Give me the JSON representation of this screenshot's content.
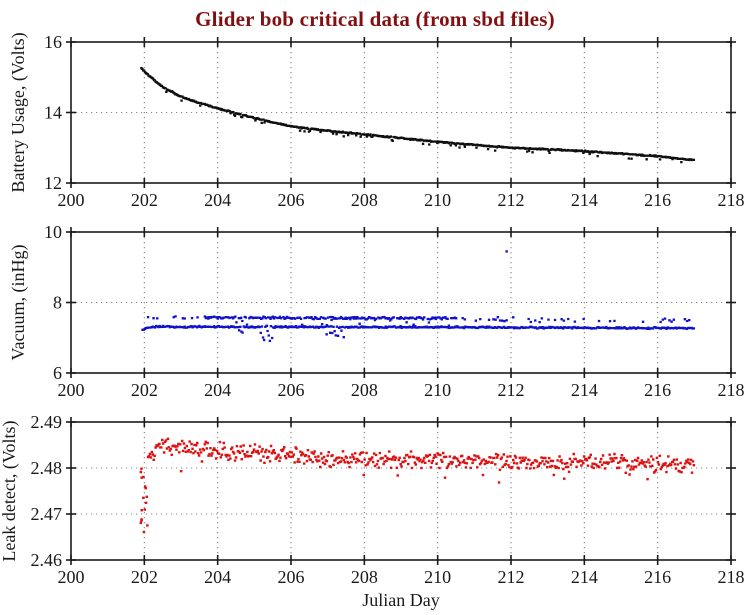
{
  "title": {
    "text": "Glider bob critical data (from sbd files)",
    "color": "#821010"
  },
  "figure": {
    "xlabel": "Julian Day"
  },
  "style": {
    "axis_color": "#1a1a1a",
    "grid_color": "#848484",
    "tick_label_color": "#1a1a1a",
    "background": "#ffffff"
  },
  "chart_data": [
    {
      "type": "scatter",
      "name": "battery-usage",
      "ylabel": "Battery Usage, (Volts)",
      "xlim": [
        200,
        218
      ],
      "ylim": [
        12,
        16
      ],
      "xticks": [
        200,
        202,
        204,
        206,
        208,
        210,
        212,
        214,
        216,
        218
      ],
      "xtick_labels": [
        "200",
        "202",
        "204",
        "206",
        "208",
        "210",
        "212",
        "214",
        "216",
        "218"
      ],
      "yticks": [
        12,
        14,
        16
      ],
      "ytick_labels": [
        "12",
        "14",
        "16"
      ],
      "grid": true,
      "series": [
        {
          "name": "battery_volts",
          "color": "#101010",
          "marker_px": 2.3,
          "gen": {
            "kind": "trend_scatter",
            "seed": 101,
            "x_range": [
              201.92,
              217.0
            ],
            "step": 0.0243,
            "keep": 1.0,
            "sd": 0.012,
            "low_rate": 0.09,
            "low_depth": [
              0.04,
              0.12
            ],
            "trend": [
              [
                201.92,
                15.25
              ],
              [
                202.2,
                14.98
              ],
              [
                202.5,
                14.72
              ],
              [
                203.0,
                14.45
              ],
              [
                203.5,
                14.27
              ],
              [
                204.0,
                14.12
              ],
              [
                204.5,
                13.98
              ],
              [
                205.0,
                13.85
              ],
              [
                205.5,
                13.72
              ],
              [
                206.0,
                13.61
              ],
              [
                206.5,
                13.54
              ],
              [
                207.0,
                13.48
              ],
              [
                207.5,
                13.43
              ],
              [
                208.0,
                13.38
              ],
              [
                209.0,
                13.27
              ],
              [
                210.0,
                13.17
              ],
              [
                211.0,
                13.08
              ],
              [
                212.0,
                13.0
              ],
              [
                213.0,
                12.96
              ],
              [
                214.0,
                12.9
              ],
              [
                215.0,
                12.83
              ],
              [
                216.0,
                12.76
              ],
              [
                217.0,
                12.65
              ]
            ]
          }
        }
      ],
      "outliers": []
    },
    {
      "type": "scatter",
      "name": "vacuum",
      "ylabel": "Vacuum, (inHg)",
      "xlim": [
        200,
        218
      ],
      "ylim": [
        6,
        10
      ],
      "xticks": [
        200,
        202,
        204,
        206,
        208,
        210,
        212,
        214,
        216,
        218
      ],
      "xtick_labels": [
        "200",
        "202",
        "204",
        "206",
        "208",
        "210",
        "212",
        "214",
        "216",
        "218"
      ],
      "yticks": [
        6,
        8,
        10
      ],
      "ytick_labels": [
        "6",
        "8",
        "10"
      ],
      "grid": true,
      "series": [
        {
          "name": "vacuum_lower_band",
          "color": "#1212cc",
          "marker_px": 2.3,
          "gen": {
            "kind": "trend_scatter",
            "seed": 202,
            "x_range": [
              201.95,
              217.0
            ],
            "step": 0.031,
            "keep": 1.0,
            "sd": 0.016,
            "trend": [
              [
                201.95,
                7.22
              ],
              [
                202.05,
                7.28
              ],
              [
                202.3,
                7.31
              ],
              [
                210.0,
                7.3
              ],
              [
                217.0,
                7.27
              ]
            ],
            "dips": [
              {
                "x_range": [
                  204.45,
                  204.8
                ],
                "rate": 0.25,
                "depth": [
                  0.05,
                  0.18
                ]
              },
              {
                "x_range": [
                  205.15,
                  205.55
                ],
                "rate": 0.4,
                "depth": [
                  0.12,
                  0.42
                ]
              },
              {
                "x_range": [
                  206.95,
                  207.45
                ],
                "rate": 0.5,
                "depth": [
                  0.12,
                  0.45
                ]
              }
            ]
          }
        },
        {
          "name": "vacuum_upper_band_sparse_early",
          "color": "#1212cc",
          "marker_px": 2.3,
          "gen": {
            "kind": "trend_scatter",
            "seed": 203,
            "x_range": [
              202.05,
              203.68
            ],
            "step": 0.05,
            "keep": 0.35,
            "sd": 0.03,
            "trend": [
              [
                202.05,
                7.55
              ],
              [
                203.68,
                7.56
              ]
            ]
          }
        },
        {
          "name": "vacuum_upper_band_dense",
          "color": "#1212cc",
          "marker_px": 2.3,
          "gen": {
            "kind": "trend_scatter",
            "seed": 204,
            "x_range": [
              203.68,
              210.5
            ],
            "step": 0.032,
            "keep": 0.92,
            "sd": 0.025,
            "low_rate": 0.12,
            "low_depth": [
              0.05,
              0.22
            ],
            "trend": [
              [
                203.68,
                7.57
              ],
              [
                210.5,
                7.55
              ]
            ]
          }
        },
        {
          "name": "vacuum_upper_band_sparse_late",
          "color": "#1212cc",
          "marker_px": 2.3,
          "gen": {
            "kind": "trend_scatter",
            "seed": 205,
            "x_range": [
              210.5,
              216.9
            ],
            "step": 0.06,
            "keep": 0.45,
            "sd": 0.045,
            "trend": [
              [
                210.5,
                7.52
              ],
              [
                217.0,
                7.48
              ]
            ]
          }
        }
      ],
      "outliers": [
        [
          211.88,
          9.45
        ]
      ]
    },
    {
      "type": "scatter",
      "name": "leak-detect",
      "ylabel": "Leak detect, (Volts)",
      "xlim": [
        200,
        218
      ],
      "ylim": [
        2.46,
        2.49
      ],
      "xticks": [
        200,
        202,
        204,
        206,
        208,
        210,
        212,
        214,
        216,
        218
      ],
      "xtick_labels": [
        "200",
        "202",
        "204",
        "206",
        "208",
        "210",
        "212",
        "214",
        "216",
        "218"
      ],
      "yticks": [
        2.46,
        2.47,
        2.48,
        2.49
      ],
      "ytick_labels": [
        "2.46",
        "2.47",
        "2.48",
        "2.49"
      ],
      "grid": true,
      "series": [
        {
          "name": "leak_startup_ramp",
          "color": "#dd1111",
          "marker_px": 2.4,
          "gen": {
            "kind": "ramp_scatter",
            "seed": 301,
            "x_range": [
              201.9,
              202.08
            ],
            "y_range": [
              2.466,
              2.48
            ],
            "n": 16,
            "sd": 0.0007
          }
        },
        {
          "name": "leak_volts",
          "color": "#dd1111",
          "marker_px": 2.4,
          "gen": {
            "kind": "trend_scatter",
            "seed": 302,
            "x_range": [
              202.1,
              217.0
            ],
            "step": 0.0258,
            "keep": 1.0,
            "sd": 0.0012,
            "low_rate": 0.04,
            "low_depth": [
              0.0008,
              0.0035
            ],
            "trend": [
              [
                202.1,
                2.482
              ],
              [
                202.4,
                2.4848
              ],
              [
                203.0,
                2.4845
              ],
              [
                204.0,
                2.4838
              ],
              [
                205.0,
                2.4833
              ],
              [
                206.0,
                2.4827
              ],
              [
                207.0,
                2.4822
              ],
              [
                208.0,
                2.482
              ],
              [
                210.0,
                2.4817
              ],
              [
                212.0,
                2.4814
              ],
              [
                214.0,
                2.4812
              ],
              [
                216.0,
                2.481
              ],
              [
                217.0,
                2.4806
              ]
            ]
          }
        }
      ],
      "outliers": []
    }
  ]
}
